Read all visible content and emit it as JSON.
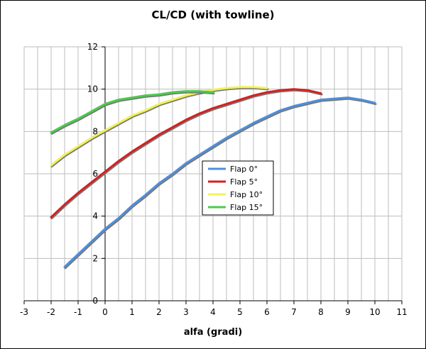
{
  "chart_data": {
    "type": "line",
    "title": "CL/CD (with towline)",
    "xlabel": "alfa (gradi)",
    "ylabel": "",
    "xlim": [
      -3,
      11
    ],
    "ylim": [
      0,
      12
    ],
    "x_ticks": [
      -3,
      -2,
      -1,
      0,
      1,
      2,
      3,
      4,
      5,
      6,
      7,
      8,
      9,
      10,
      11
    ],
    "y_ticks": [
      0,
      2,
      4,
      6,
      8,
      10,
      12
    ],
    "grid": true,
    "legend_position": "center",
    "series": [
      {
        "name": "Flap 0°",
        "color": "#4F8EDC",
        "x": [
          -1.5,
          -1,
          -0.5,
          0,
          0.5,
          1,
          1.5,
          2,
          2.5,
          3,
          3.5,
          4,
          4.5,
          5,
          5.5,
          6,
          6.5,
          7,
          7.5,
          8,
          8.5,
          9,
          9.5,
          10
        ],
        "y": [
          1.6,
          2.2,
          2.8,
          3.4,
          3.9,
          4.5,
          5.0,
          5.55,
          6.0,
          6.5,
          6.9,
          7.3,
          7.7,
          8.05,
          8.4,
          8.7,
          9.0,
          9.2,
          9.35,
          9.5,
          9.55,
          9.6,
          9.5,
          9.35
        ]
      },
      {
        "name": "Flap 5°",
        "color": "#D42020",
        "x": [
          -2,
          -1.5,
          -1,
          -0.5,
          0,
          0.5,
          1,
          1.5,
          2,
          2.5,
          3,
          3.5,
          4,
          4.5,
          5,
          5.5,
          6,
          6.5,
          7,
          7.5,
          8
        ],
        "y": [
          3.95,
          4.55,
          5.1,
          5.6,
          6.1,
          6.6,
          7.05,
          7.45,
          7.85,
          8.2,
          8.55,
          8.85,
          9.1,
          9.3,
          9.5,
          9.7,
          9.85,
          9.95,
          10.0,
          9.95,
          9.8
        ]
      },
      {
        "name": "Flap 10°",
        "color": "#F2F25A",
        "x": [
          -2,
          -1.5,
          -1,
          -0.5,
          0,
          0.5,
          1,
          1.5,
          2,
          2.5,
          3,
          3.5,
          4,
          4.5,
          5,
          5.5,
          6
        ],
        "y": [
          6.4,
          6.9,
          7.3,
          7.7,
          8.05,
          8.4,
          8.75,
          9.0,
          9.3,
          9.5,
          9.7,
          9.85,
          9.97,
          10.05,
          10.1,
          10.1,
          10.05
        ]
      },
      {
        "name": "Flap 15°",
        "color": "#4CCB4C",
        "x": [
          -2,
          -1.5,
          -1,
          -0.5,
          0,
          0.5,
          1,
          1.5,
          2,
          2.5,
          3,
          3.5,
          4
        ],
        "y": [
          7.95,
          8.3,
          8.6,
          8.95,
          9.3,
          9.5,
          9.6,
          9.7,
          9.75,
          9.85,
          9.9,
          9.9,
          9.85
        ]
      }
    ]
  }
}
